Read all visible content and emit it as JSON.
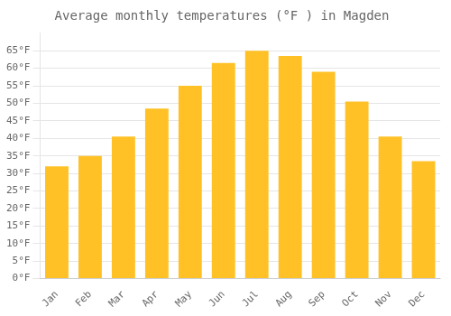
{
  "chart_data": {
    "type": "bar",
    "title": "Average monthly temperatures (°F ) in Magden",
    "categories": [
      "Jan",
      "Feb",
      "Mar",
      "Apr",
      "May",
      "Jun",
      "Jul",
      "Aug",
      "Sep",
      "Oct",
      "Nov",
      "Dec"
    ],
    "values": [
      32,
      35,
      40.5,
      48.5,
      55,
      61.5,
      65,
      63.5,
      59,
      50.5,
      40.5,
      33.5
    ],
    "color": "#FFC125",
    "ylim": [
      0,
      70
    ],
    "yticks": [
      {
        "value": 0,
        "label": "0°F"
      },
      {
        "value": 5,
        "label": "5°F"
      },
      {
        "value": 10,
        "label": "10°F"
      },
      {
        "value": 15,
        "label": "15°F"
      },
      {
        "value": 20,
        "label": "20°F"
      },
      {
        "value": 25,
        "label": "25°F"
      },
      {
        "value": 30,
        "label": "30°F"
      },
      {
        "value": 35,
        "label": "35°F"
      },
      {
        "value": 40,
        "label": "40°F"
      },
      {
        "value": 45,
        "label": "45°F"
      },
      {
        "value": 50,
        "label": "50°F"
      },
      {
        "value": 55,
        "label": "55°F"
      },
      {
        "value": 60,
        "label": "60°F"
      },
      {
        "value": 65,
        "label": "65°F"
      }
    ],
    "grid": true
  }
}
